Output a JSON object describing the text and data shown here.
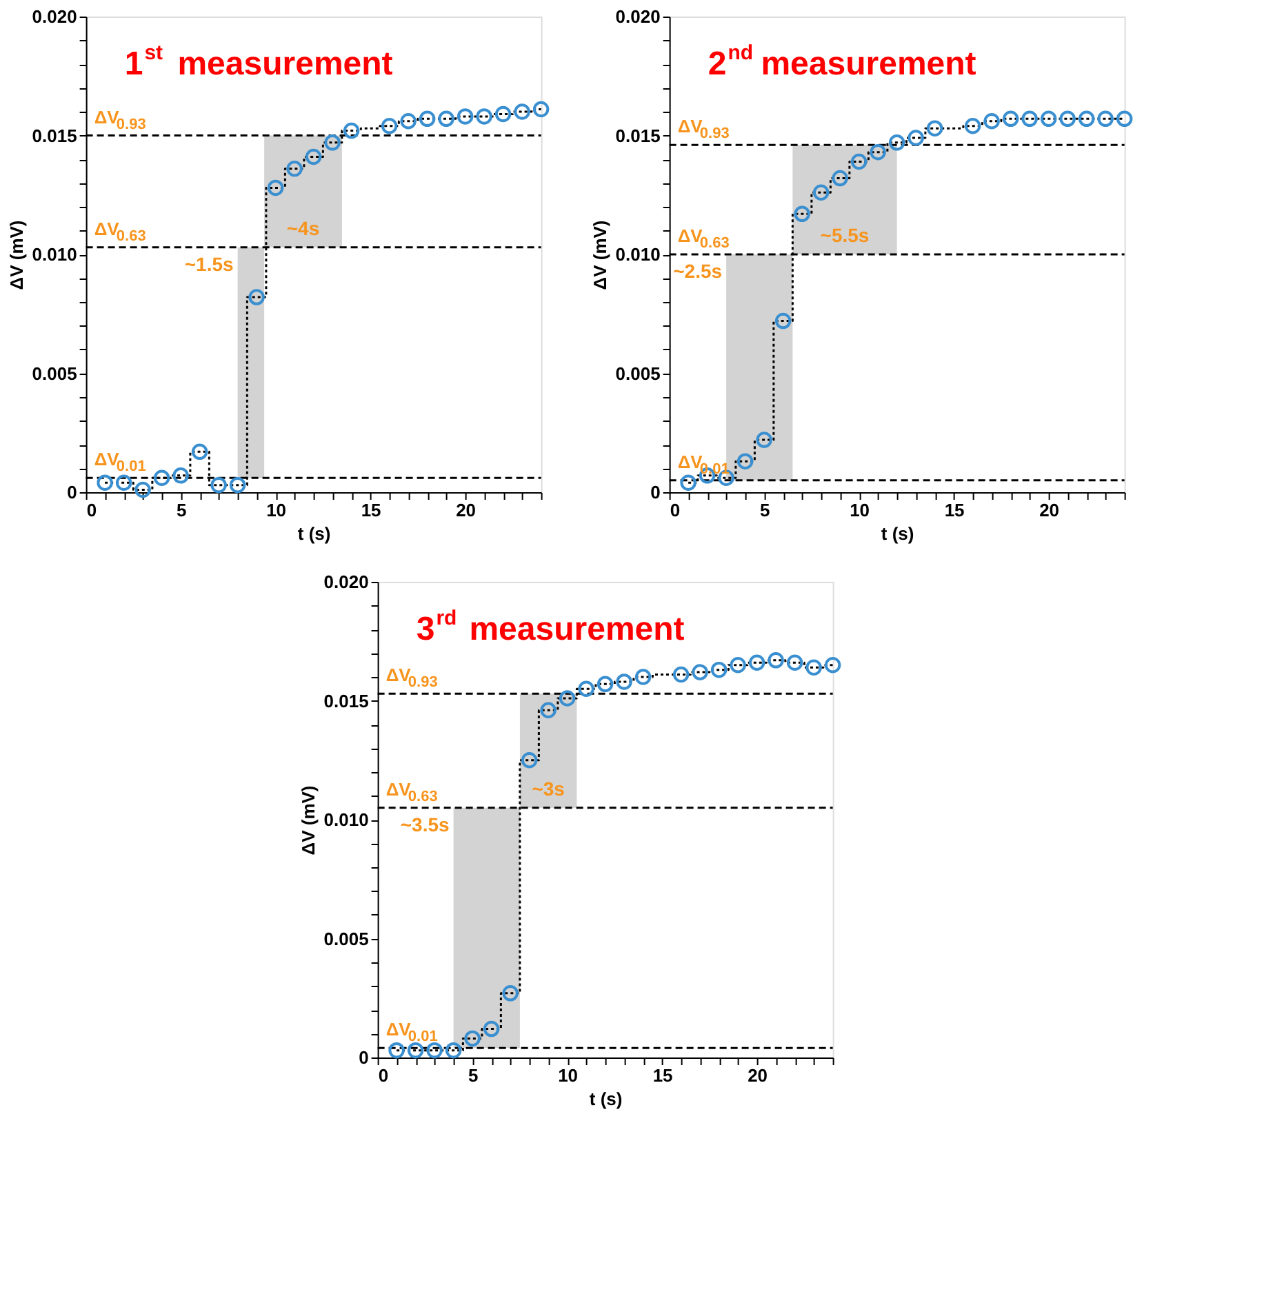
{
  "chart_data": [
    {
      "type": "scatter",
      "title": "1$^{st}$ measurement",
      "xlabel": "t (s)",
      "ylabel": "ΔV (mV)",
      "xlim": [
        0,
        24
      ],
      "ylim": [
        0,
        0.02
      ],
      "xticks": [
        0,
        {
          "value": 1,
          "label": null
        },
        {
          "value": 2,
          "label": null
        },
        {
          "value": 3,
          "label": null
        },
        {
          "value": 4,
          "label": null
        },
        5,
        {
          "value": 6,
          "label": null
        },
        {
          "value": 7,
          "label": null
        },
        {
          "value": 8,
          "label": null
        },
        {
          "value": 9,
          "label": null
        },
        10,
        {
          "value": 11,
          "label": null
        },
        {
          "value": 12,
          "label": null
        },
        {
          "value": 13,
          "label": null
        },
        {
          "value": 14,
          "label": null
        },
        15,
        {
          "value": 16,
          "label": null
        },
        {
          "value": 17,
          "label": null
        },
        {
          "value": 18,
          "label": null
        },
        {
          "value": 19,
          "label": null
        },
        20,
        {
          "value": 21,
          "label": null
        },
        {
          "value": 22,
          "label": null
        },
        {
          "value": 23,
          "label": null
        },
        {
          "value": 24,
          "label": null
        }
      ],
      "yticks": [
        0,
        {
          "value": 0.001,
          "label": null
        },
        {
          "value": 0.002,
          "label": null
        },
        {
          "value": 0.003,
          "label": null
        },
        {
          "value": 0.004,
          "label": null
        },
        0.005,
        {
          "value": 0.006,
          "label": null
        },
        {
          "value": 0.007,
          "label": null
        },
        {
          "value": 0.008,
          "label": null
        },
        {
          "value": 0.009,
          "label": null
        },
        {
          "value": 0.01,
          "label": "0.010"
        },
        {
          "value": 0.011,
          "label": null
        },
        {
          "value": 0.012,
          "label": null
        },
        {
          "value": 0.013,
          "label": null
        },
        {
          "value": 0.014,
          "label": null
        },
        0.015,
        {
          "value": 0.016,
          "label": null
        },
        {
          "value": 0.017,
          "label": null
        },
        {
          "value": 0.018,
          "label": null
        },
        {
          "value": 0.019,
          "label": null
        },
        {
          "value": 0.02,
          "label": "0.020"
        }
      ],
      "x": [
        1,
        2,
        3,
        4,
        5,
        6,
        7,
        8,
        9,
        10,
        11,
        12,
        13,
        14,
        15,
        16,
        17,
        18,
        19,
        20,
        21,
        22,
        23,
        24
      ],
      "series": [
        {
          "type": "step",
          "color": "#000000",
          "line_style": "dotted",
          "values": [
            0.0004,
            0.0004,
            0.0001,
            0.0006,
            0.0007,
            0.0017,
            0.0003,
            0.0003,
            0.0082,
            0.0128,
            0.0136,
            0.0141,
            0.0147,
            0.0152,
            0.0153,
            0.0154,
            0.0156,
            0.0157,
            0.0157,
            0.0158,
            0.0158,
            0.0159,
            0.016,
            0.0161
          ]
        },
        {
          "color": "#3a8fd0",
          "marker": "circle",
          "values": [
            0.0004,
            0.0004,
            0.0001,
            0.0006,
            0.0007,
            0.0017,
            0.0003,
            0.0003,
            0.0082,
            0.0128,
            0.0136,
            0.0141,
            0.0147,
            0.0152,
            null,
            0.0154,
            0.0156,
            0.0157,
            0.0157,
            0.0158,
            0.0158,
            0.0159,
            0.016,
            0.0161
          ]
        }
      ],
      "ref_lines": [
        {
          "axis": "y",
          "value": 0.015,
          "label": "ΔV$_{0.93}$",
          "color": "#000000",
          "line_style": "dashed"
        },
        {
          "axis": "y",
          "value": 0.0103,
          "label": "ΔV$_{0.63}$",
          "color": "#000000",
          "line_style": "dashed"
        },
        {
          "axis": "y",
          "value": 0.0006,
          "label": "ΔV$_{0.01}$",
          "color": "#000000",
          "line_style": "dashed"
        }
      ],
      "bands": [
        {
          "axis": "x",
          "from": 8.0,
          "to": 9.4,
          "label": "~1.5s",
          "color": "#d3d3d3"
        },
        {
          "axis": "x",
          "from": 9.4,
          "to": 13.5,
          "label": "~4s",
          "color": "#d3d3d3"
        }
      ],
      "grid": false
    },
    {
      "type": "scatter",
      "title": "2$^{nd}$ measurement",
      "xlabel": "t (s)",
      "ylabel": "ΔV (mV)",
      "xlim": [
        0,
        24
      ],
      "ylim": [
        0,
        0.02
      ],
      "xticks": [
        0,
        {
          "value": 1,
          "label": null
        },
        {
          "value": 2,
          "label": null
        },
        {
          "value": 3,
          "label": null
        },
        {
          "value": 4,
          "label": null
        },
        5,
        {
          "value": 6,
          "label": null
        },
        {
          "value": 7,
          "label": null
        },
        {
          "value": 8,
          "label": null
        },
        {
          "value": 9,
          "label": null
        },
        10,
        {
          "value": 11,
          "label": null
        },
        {
          "value": 12,
          "label": null
        },
        {
          "value": 13,
          "label": null
        },
        {
          "value": 14,
          "label": null
        },
        15,
        {
          "value": 16,
          "label": null
        },
        {
          "value": 17,
          "label": null
        },
        {
          "value": 18,
          "label": null
        },
        {
          "value": 19,
          "label": null
        },
        20,
        {
          "value": 21,
          "label": null
        },
        {
          "value": 22,
          "label": null
        },
        {
          "value": 23,
          "label": null
        },
        {
          "value": 24,
          "label": null
        }
      ],
      "yticks": [
        0,
        {
          "value": 0.001,
          "label": null
        },
        {
          "value": 0.002,
          "label": null
        },
        {
          "value": 0.003,
          "label": null
        },
        {
          "value": 0.004,
          "label": null
        },
        0.005,
        {
          "value": 0.006,
          "label": null
        },
        {
          "value": 0.007,
          "label": null
        },
        {
          "value": 0.008,
          "label": null
        },
        {
          "value": 0.009,
          "label": null
        },
        {
          "value": 0.01,
          "label": "0.010"
        },
        {
          "value": 0.011,
          "label": null
        },
        {
          "value": 0.012,
          "label": null
        },
        {
          "value": 0.013,
          "label": null
        },
        {
          "value": 0.014,
          "label": null
        },
        0.015,
        {
          "value": 0.016,
          "label": null
        },
        {
          "value": 0.017,
          "label": null
        },
        {
          "value": 0.018,
          "label": null
        },
        {
          "value": 0.019,
          "label": null
        },
        {
          "value": 0.02,
          "label": "0.020"
        }
      ],
      "x": [
        1,
        2,
        3,
        4,
        5,
        6,
        7,
        8,
        9,
        10,
        11,
        12,
        13,
        14,
        15,
        16,
        17,
        18,
        19,
        20,
        21,
        22,
        23,
        24
      ],
      "series": [
        {
          "type": "step",
          "color": "#000000",
          "line_style": "dotted",
          "values": [
            0.0004,
            0.0007,
            0.0006,
            0.0013,
            0.0022,
            0.0072,
            0.0117,
            0.0126,
            0.0132,
            0.0139,
            0.0143,
            0.0147,
            0.0149,
            0.0153,
            0.0153,
            0.0154,
            0.0156,
            0.0157,
            0.0157,
            0.0157,
            0.0157,
            0.0157,
            0.0157,
            0.0157
          ]
        },
        {
          "color": "#3a8fd0",
          "marker": "circle",
          "values": [
            0.0004,
            0.0007,
            0.0006,
            0.0013,
            0.0022,
            0.0072,
            0.0117,
            0.0126,
            0.0132,
            0.0139,
            0.0143,
            0.0147,
            0.0149,
            0.0153,
            null,
            0.0154,
            0.0156,
            0.0157,
            0.0157,
            0.0157,
            0.0157,
            0.0157,
            0.0157,
            0.0157
          ]
        }
      ],
      "ref_lines": [
        {
          "axis": "y",
          "value": 0.0146,
          "label": "ΔV$_{0.93}$",
          "color": "#000000",
          "line_style": "dashed"
        },
        {
          "axis": "y",
          "value": 0.01,
          "label": "ΔV$_{0.63}$",
          "color": "#000000",
          "line_style": "dashed"
        },
        {
          "axis": "y",
          "value": 0.0005,
          "label": "ΔV$_{0.01}$",
          "color": "#000000",
          "line_style": "dashed"
        }
      ],
      "bands": [
        {
          "axis": "x",
          "from": 3.0,
          "to": 6.5,
          "label": "~2.5s",
          "color": "#d3d3d3"
        },
        {
          "axis": "x",
          "from": 6.5,
          "to": 12.0,
          "label": "~5.5s",
          "color": "#d3d3d3"
        }
      ],
      "grid": false
    },
    {
      "type": "scatter",
      "title": "3$^{rd}$ measurement",
      "xlabel": "t (s)",
      "ylabel": "ΔV (mV)",
      "xlim": [
        0,
        24
      ],
      "ylim": [
        0,
        0.02
      ],
      "xticks": [
        0,
        {
          "value": 1,
          "label": null
        },
        {
          "value": 2,
          "label": null
        },
        {
          "value": 3,
          "label": null
        },
        {
          "value": 4,
          "label": null
        },
        5,
        {
          "value": 6,
          "label": null
        },
        {
          "value": 7,
          "label": null
        },
        {
          "value": 8,
          "label": null
        },
        {
          "value": 9,
          "label": null
        },
        10,
        {
          "value": 11,
          "label": null
        },
        {
          "value": 12,
          "label": null
        },
        {
          "value": 13,
          "label": null
        },
        {
          "value": 14,
          "label": null
        },
        15,
        {
          "value": 16,
          "label": null
        },
        {
          "value": 17,
          "label": null
        },
        {
          "value": 18,
          "label": null
        },
        {
          "value": 19,
          "label": null
        },
        20,
        {
          "value": 21,
          "label": null
        },
        {
          "value": 22,
          "label": null
        },
        {
          "value": 23,
          "label": null
        },
        {
          "value": 24,
          "label": null
        }
      ],
      "yticks": [
        0,
        {
          "value": 0.001,
          "label": null
        },
        {
          "value": 0.002,
          "label": null
        },
        {
          "value": 0.003,
          "label": null
        },
        {
          "value": 0.004,
          "label": null
        },
        0.005,
        {
          "value": 0.006,
          "label": null
        },
        {
          "value": 0.007,
          "label": null
        },
        {
          "value": 0.008,
          "label": null
        },
        {
          "value": 0.009,
          "label": null
        },
        {
          "value": 0.01,
          "label": "0.010"
        },
        {
          "value": 0.011,
          "label": null
        },
        {
          "value": 0.012,
          "label": null
        },
        {
          "value": 0.013,
          "label": null
        },
        {
          "value": 0.014,
          "label": null
        },
        0.015,
        {
          "value": 0.016,
          "label": null
        },
        {
          "value": 0.017,
          "label": null
        },
        {
          "value": 0.018,
          "label": null
        },
        {
          "value": 0.019,
          "label": null
        },
        {
          "value": 0.02,
          "label": "0.020"
        }
      ],
      "x": [
        1,
        2,
        3,
        4,
        5,
        6,
        7,
        8,
        9,
        10,
        11,
        12,
        13,
        14,
        15,
        16,
        17,
        18,
        19,
        20,
        21,
        22,
        23,
        24
      ],
      "series": [
        {
          "type": "step",
          "color": "#000000",
          "line_style": "dotted",
          "values": [
            0.0003,
            0.0003,
            0.0003,
            0.0003,
            0.0008,
            0.0012,
            0.0027,
            0.0125,
            0.0146,
            0.0151,
            0.0155,
            0.0157,
            0.0158,
            0.016,
            0.0161,
            0.0161,
            0.0162,
            0.0163,
            0.0165,
            0.0166,
            0.0167,
            0.0166,
            0.0164,
            0.0165
          ]
        },
        {
          "color": "#3a8fd0",
          "marker": "circle",
          "values": [
            0.0003,
            0.0003,
            0.0003,
            0.0003,
            0.0008,
            0.0012,
            0.0027,
            0.0125,
            0.0146,
            0.0151,
            0.0155,
            0.0157,
            0.0158,
            0.016,
            null,
            0.0161,
            0.0162,
            0.0163,
            0.0165,
            0.0166,
            0.0167,
            0.0166,
            0.0164,
            0.0165
          ]
        }
      ],
      "ref_lines": [
        {
          "axis": "y",
          "value": 0.0153,
          "label": "ΔV$_{0.93}$",
          "color": "#000000",
          "line_style": "dashed"
        },
        {
          "axis": "y",
          "value": 0.0105,
          "label": "ΔV$_{0.63}$",
          "color": "#000000",
          "line_style": "dashed"
        },
        {
          "axis": "y",
          "value": 0.0004,
          "label": "ΔV$_{0.01}$",
          "color": "#000000",
          "line_style": "dashed"
        }
      ],
      "bands": [
        {
          "axis": "x",
          "from": 4.0,
          "to": 7.5,
          "label": "~3.5s",
          "color": "#d3d3d3"
        },
        {
          "axis": "x",
          "from": 7.5,
          "to": 10.5,
          "label": "~3s",
          "color": "#d3d3d3"
        }
      ],
      "grid": false
    }
  ]
}
